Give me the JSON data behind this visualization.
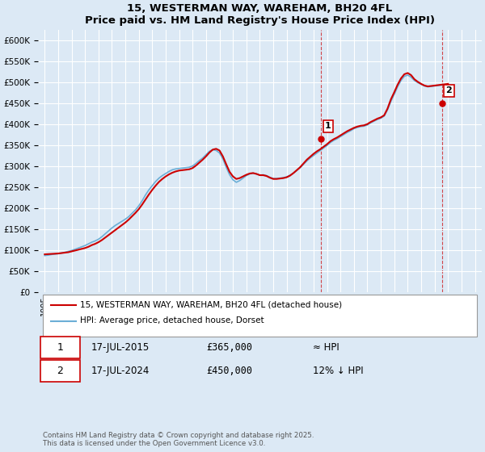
{
  "title_line1": "15, WESTERMAN WAY, WAREHAM, BH20 4FL",
  "title_line2": "Price paid vs. HM Land Registry's House Price Index (HPI)",
  "background_color": "#dce9f5",
  "plot_bg_color": "#dce9f5",
  "ylabel_values": [
    "£0",
    "£50K",
    "£100K",
    "£150K",
    "£200K",
    "£250K",
    "£300K",
    "£350K",
    "£400K",
    "£450K",
    "£500K",
    "£550K",
    "£600K"
  ],
  "yticks": [
    0,
    50000,
    100000,
    150000,
    200000,
    250000,
    300000,
    350000,
    400000,
    450000,
    500000,
    550000,
    600000
  ],
  "ylim": [
    0,
    625000
  ],
  "xlim_start": 1994.5,
  "xlim_end": 2027.5,
  "xticks": [
    1995,
    1996,
    1997,
    1998,
    1999,
    2000,
    2001,
    2002,
    2003,
    2004,
    2005,
    2006,
    2007,
    2008,
    2009,
    2010,
    2011,
    2012,
    2013,
    2014,
    2015,
    2016,
    2017,
    2018,
    2019,
    2020,
    2021,
    2022,
    2023,
    2024,
    2025,
    2026,
    2027
  ],
  "grid_color": "#ffffff",
  "hpi_line_color": "#6baed6",
  "price_line_color": "#cc0000",
  "marker1_x": 2015.54,
  "marker1_y": 365000,
  "marker2_x": 2024.54,
  "marker2_y": 450000,
  "annotation1_label": "1",
  "annotation2_label": "2",
  "legend_label1": "15, WESTERMAN WAY, WAREHAM, BH20 4FL (detached house)",
  "legend_label2": "HPI: Average price, detached house, Dorset",
  "table_row1": [
    "1",
    "17-JUL-2015",
    "£365,000",
    "≈ HPI"
  ],
  "table_row2": [
    "2",
    "17-JUL-2024",
    "£450,000",
    "12% ↓ HPI"
  ],
  "footer": "Contains HM Land Registry data © Crown copyright and database right 2025.\nThis data is licensed under the Open Government Licence v3.0.",
  "hpi_data_x": [
    1995.0,
    1995.25,
    1995.5,
    1995.75,
    1996.0,
    1996.25,
    1996.5,
    1996.75,
    1997.0,
    1997.25,
    1997.5,
    1997.75,
    1998.0,
    1998.25,
    1998.5,
    1998.75,
    1999.0,
    1999.25,
    1999.5,
    1999.75,
    2000.0,
    2000.25,
    2000.5,
    2000.75,
    2001.0,
    2001.25,
    2001.5,
    2001.75,
    2002.0,
    2002.25,
    2002.5,
    2002.75,
    2003.0,
    2003.25,
    2003.5,
    2003.75,
    2004.0,
    2004.25,
    2004.5,
    2004.75,
    2005.0,
    2005.25,
    2005.5,
    2005.75,
    2006.0,
    2006.25,
    2006.5,
    2006.75,
    2007.0,
    2007.25,
    2007.5,
    2007.75,
    2008.0,
    2008.25,
    2008.5,
    2008.75,
    2009.0,
    2009.25,
    2009.5,
    2009.75,
    2010.0,
    2010.25,
    2010.5,
    2010.75,
    2011.0,
    2011.25,
    2011.5,
    2011.75,
    2012.0,
    2012.25,
    2012.5,
    2012.75,
    2013.0,
    2013.25,
    2013.5,
    2013.75,
    2014.0,
    2014.25,
    2014.5,
    2014.75,
    2015.0,
    2015.25,
    2015.5,
    2015.75,
    2016.0,
    2016.25,
    2016.5,
    2016.75,
    2017.0,
    2017.25,
    2017.5,
    2017.75,
    2018.0,
    2018.25,
    2018.5,
    2018.75,
    2019.0,
    2019.25,
    2019.5,
    2019.75,
    2020.0,
    2020.25,
    2020.5,
    2020.75,
    2021.0,
    2021.25,
    2021.5,
    2021.75,
    2022.0,
    2022.25,
    2022.5,
    2022.75,
    2023.0,
    2023.25,
    2023.5,
    2023.75,
    2024.0,
    2024.25,
    2024.5,
    2024.75,
    2025.0
  ],
  "hpi_data_y": [
    87000,
    88000,
    89500,
    90500,
    91500,
    93000,
    95000,
    97000,
    99000,
    102000,
    105000,
    108000,
    111000,
    115000,
    119000,
    122000,
    126000,
    132000,
    139000,
    146000,
    153000,
    159000,
    164000,
    169000,
    174000,
    180000,
    188000,
    196000,
    206000,
    218000,
    232000,
    244000,
    254000,
    264000,
    272000,
    278000,
    283000,
    288000,
    292000,
    294000,
    295000,
    296000,
    297000,
    298000,
    301000,
    307000,
    314000,
    320000,
    328000,
    336000,
    340000,
    338000,
    332000,
    318000,
    298000,
    280000,
    268000,
    262000,
    266000,
    272000,
    278000,
    282000,
    284000,
    282000,
    279000,
    280000,
    278000,
    274000,
    271000,
    271000,
    272000,
    273000,
    275000,
    279000,
    284000,
    290000,
    297000,
    305000,
    313000,
    320000,
    326000,
    332000,
    338000,
    344000,
    350000,
    357000,
    362000,
    366000,
    371000,
    376000,
    381000,
    385000,
    390000,
    393000,
    395000,
    396000,
    399000,
    404000,
    408000,
    412000,
    415000,
    420000,
    435000,
    455000,
    472000,
    490000,
    505000,
    515000,
    518000,
    513000,
    505000,
    500000,
    496000,
    492000,
    490000,
    491000,
    492000,
    493000,
    494000,
    495000,
    496000
  ],
  "price_data_x": [
    1995.0,
    1995.25,
    1995.5,
    1995.75,
    1996.0,
    1996.25,
    1996.5,
    1996.75,
    1997.0,
    1997.25,
    1997.5,
    1997.75,
    1998.0,
    1998.25,
    1998.5,
    1998.75,
    1999.0,
    1999.25,
    1999.5,
    1999.75,
    2000.0,
    2000.25,
    2000.5,
    2000.75,
    2001.0,
    2001.25,
    2001.5,
    2001.75,
    2002.0,
    2002.25,
    2002.5,
    2002.75,
    2003.0,
    2003.25,
    2003.5,
    2003.75,
    2004.0,
    2004.25,
    2004.5,
    2004.75,
    2005.0,
    2005.25,
    2005.5,
    2005.75,
    2006.0,
    2006.25,
    2006.5,
    2006.75,
    2007.0,
    2007.25,
    2007.5,
    2007.75,
    2008.0,
    2008.25,
    2008.5,
    2008.75,
    2009.0,
    2009.25,
    2009.5,
    2009.75,
    2010.0,
    2010.25,
    2010.5,
    2010.75,
    2011.0,
    2011.25,
    2011.5,
    2011.75,
    2012.0,
    2012.25,
    2012.5,
    2012.75,
    2013.0,
    2013.25,
    2013.5,
    2013.75,
    2014.0,
    2014.25,
    2014.5,
    2014.75,
    2015.0,
    2015.25,
    2015.5,
    2015.75,
    2016.0,
    2016.25,
    2016.5,
    2016.75,
    2017.0,
    2017.25,
    2017.5,
    2017.75,
    2018.0,
    2018.25,
    2018.5,
    2018.75,
    2019.0,
    2019.25,
    2019.5,
    2019.75,
    2020.0,
    2020.25,
    2020.5,
    2020.75,
    2021.0,
    2021.25,
    2021.5,
    2021.75,
    2022.0,
    2022.25,
    2022.5,
    2022.75,
    2023.0,
    2023.25,
    2023.5,
    2023.75,
    2024.0,
    2024.25,
    2024.5,
    2024.75,
    2025.0
  ],
  "price_data_y": [
    90000,
    90500,
    91000,
    91500,
    92000,
    93000,
    94000,
    95000,
    97000,
    99000,
    101000,
    103000,
    105000,
    108000,
    112000,
    115000,
    119000,
    124000,
    130000,
    136000,
    142000,
    148000,
    154000,
    160000,
    166000,
    173000,
    181000,
    189000,
    198000,
    209000,
    221000,
    233000,
    244000,
    254000,
    263000,
    270000,
    276000,
    281000,
    285000,
    288000,
    290000,
    291000,
    292000,
    293000,
    296000,
    302000,
    309000,
    316000,
    324000,
    333000,
    340000,
    342000,
    338000,
    324000,
    305000,
    287000,
    276000,
    270000,
    272000,
    276000,
    280000,
    283000,
    284000,
    282000,
    279000,
    279000,
    277000,
    273000,
    270000,
    270000,
    271000,
    272000,
    274000,
    278000,
    284000,
    291000,
    298000,
    307000,
    316000,
    323000,
    330000,
    336000,
    341000,
    347000,
    353000,
    360000,
    365000,
    369000,
    374000,
    379000,
    384000,
    388000,
    392000,
    395000,
    397000,
    398000,
    401000,
    406000,
    410000,
    414000,
    417000,
    422000,
    438000,
    460000,
    477000,
    495000,
    510000,
    520000,
    523000,
    518000,
    508000,
    502000,
    497000,
    493000,
    491000,
    492000,
    493000,
    494000,
    495000,
    496000,
    497000
  ]
}
